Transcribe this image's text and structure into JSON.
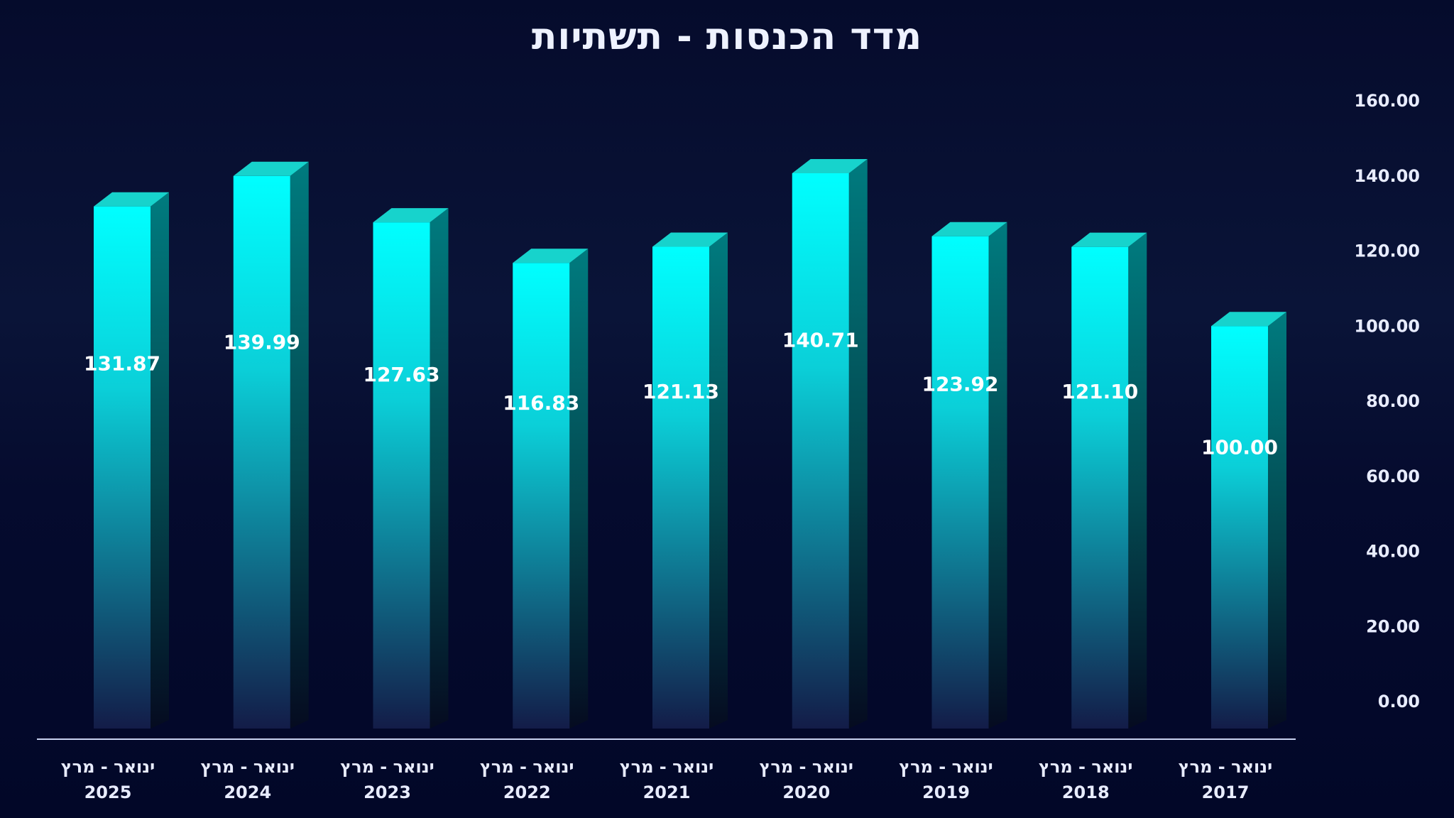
{
  "chart_data": {
    "type": "bar",
    "title": "מדד הכנסות - תשתיות",
    "categories": [
      [
        "ינואר - מרץ",
        "2025"
      ],
      [
        "ינואר - מרץ",
        "2024"
      ],
      [
        "ינואר - מרץ",
        "2023"
      ],
      [
        "ינואר - מרץ",
        "2022"
      ],
      [
        "ינואר - מרץ",
        "2021"
      ],
      [
        "ינואר - מרץ",
        "2020"
      ],
      [
        "ינואר - מרץ",
        "2019"
      ],
      [
        "ינואר - מרץ",
        "2018"
      ],
      [
        "ינואר - מרץ",
        "2017"
      ]
    ],
    "values": [
      131.87,
      139.99,
      127.63,
      116.83,
      121.13,
      140.71,
      123.92,
      121.1,
      100.0
    ],
    "value_labels": [
      "131.87",
      "139.99",
      "127.63",
      "116.83",
      "121.13",
      "140.71",
      "123.92",
      "121.10",
      "100.00"
    ],
    "yticks": [
      "0.00",
      "20.00",
      "40.00",
      "60.00",
      "80.00",
      "100.00",
      "120.00",
      "140.00",
      "160.00"
    ],
    "ylim": [
      0,
      160
    ],
    "y_axis_side": "right",
    "grid": false,
    "legend": "none",
    "colors": {
      "bar_top": "#00ffff",
      "bar_bottom": "#131c48",
      "bar_side": "#007b7f",
      "bar_cap": "#17d3cc",
      "axis_line": "#c9d2f0",
      "text": "#e8ecff"
    }
  }
}
